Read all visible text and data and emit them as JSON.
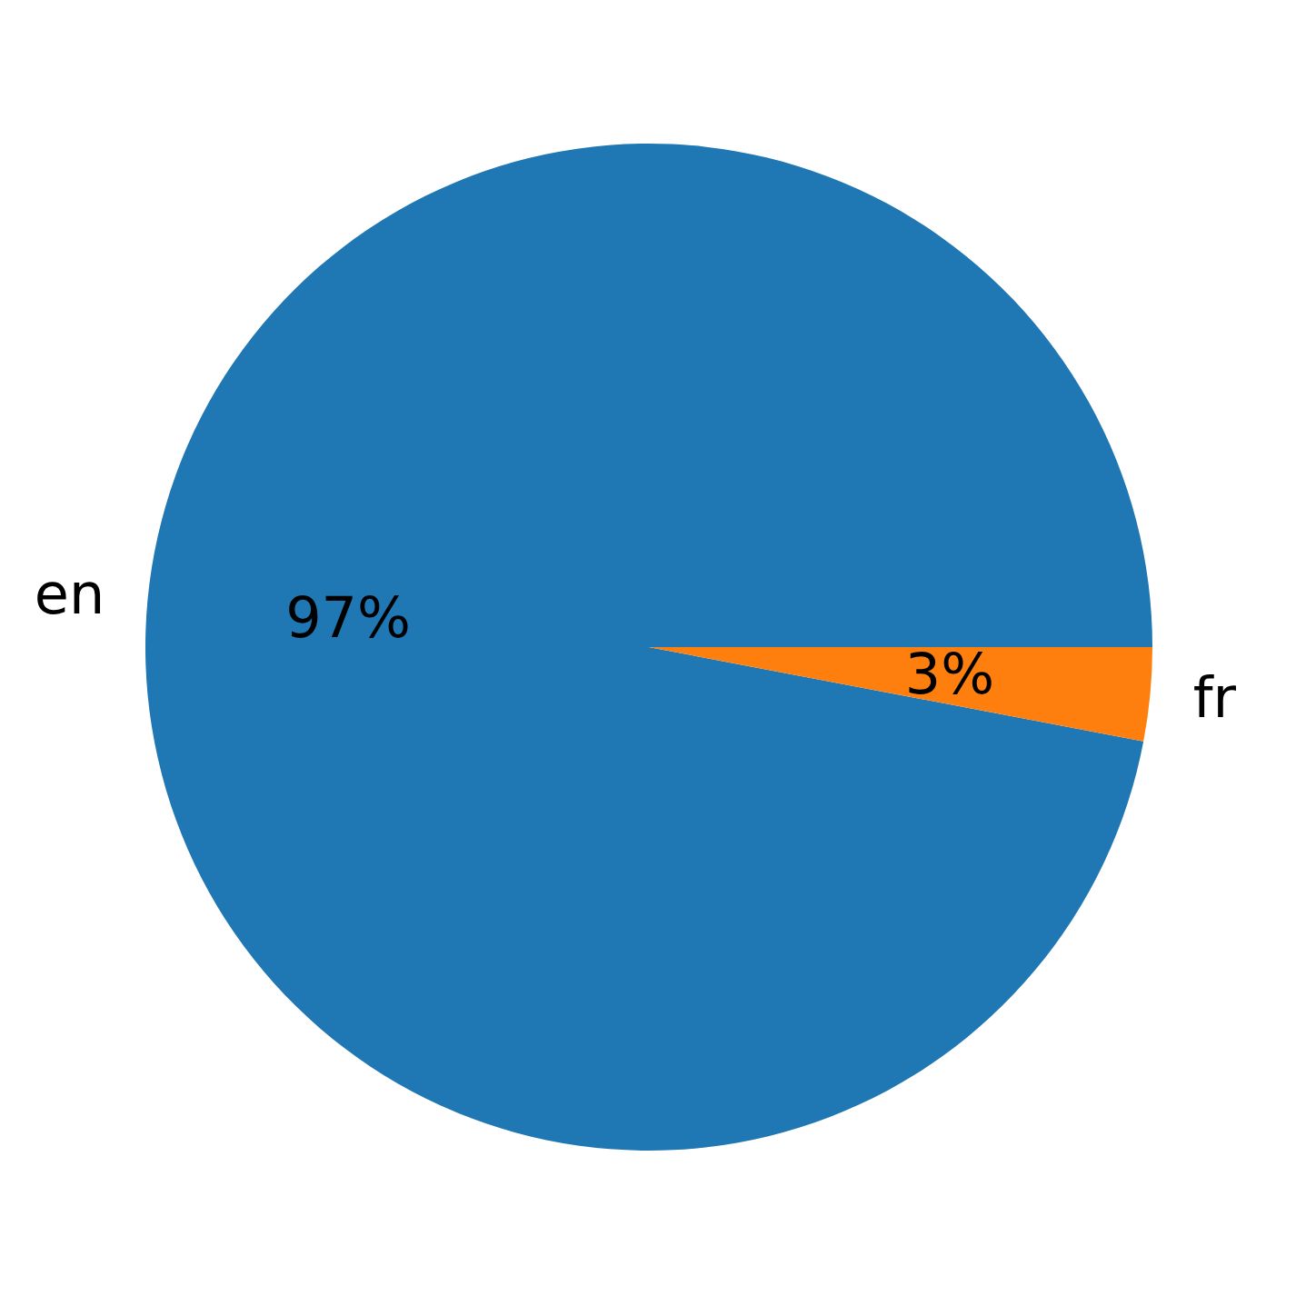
{
  "chart_data": {
    "type": "pie",
    "categories": [
      "en",
      "fr"
    ],
    "values": [
      97,
      3
    ],
    "colors": [
      "#1f77b4",
      "#ff7f0e"
    ],
    "value_labels": [
      "97%",
      "3%"
    ],
    "legend": false
  }
}
